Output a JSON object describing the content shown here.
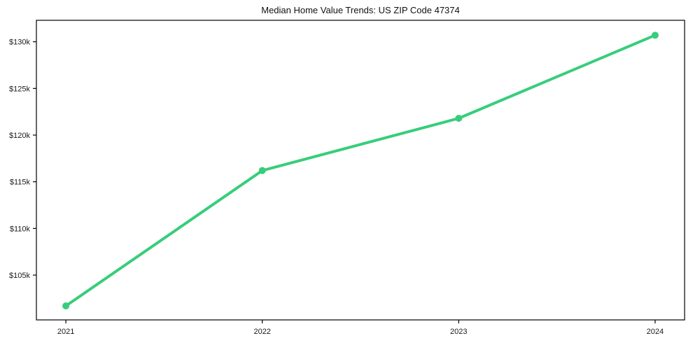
{
  "chart_data": {
    "type": "line",
    "title": "Median Home Value Trends: US ZIP Code 47374",
    "x": [
      2021,
      2022,
      2023,
      2024
    ],
    "x_labels": [
      "2021",
      "2022",
      "2023",
      "2024"
    ],
    "series": [
      {
        "name": "Median Home Value",
        "values": [
          101700,
          116200,
          121800,
          130700
        ]
      }
    ],
    "y_ticks": [
      105000,
      110000,
      115000,
      120000,
      125000,
      130000
    ],
    "y_tick_labels": [
      "$105k",
      "$110k",
      "$115k",
      "$120k",
      "$125k",
      "$130k"
    ],
    "xlim": [
      2020.85,
      2024.15
    ],
    "ylim": [
      100200,
      132300
    ],
    "xlabel": "",
    "ylabel": "",
    "grid": false,
    "legend": "none",
    "line_color": "#38cd7b",
    "axis_color": "#000000",
    "tick_label_color": "#1a1a1a",
    "background_color": "#ffffff",
    "marker": "circle"
  }
}
